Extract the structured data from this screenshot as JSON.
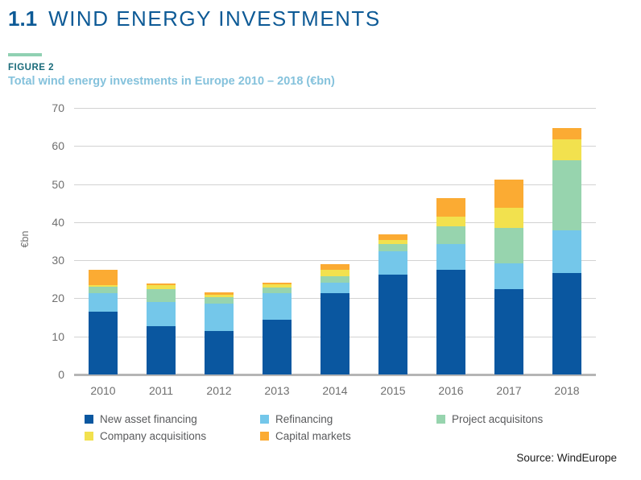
{
  "page": {
    "section_number": "1.1",
    "section_title": "WIND ENERGY INVESTMENTS",
    "figure_label": "FIGURE 2",
    "figure_title": "Total wind energy investments in Europe 2010 – 2018 (€bn)",
    "source": "Source: WindEurope"
  },
  "colors": {
    "title": "#0d5a96",
    "figure_label": "#1a6b7a",
    "figure_title": "#85c2dc",
    "accent_rule": "#90d1b2",
    "axis_text": "#6f6f6f",
    "gridline": "#d2d2d2",
    "axis_line": "#b5b5b5",
    "legend_text": "#595a5c",
    "source_text": "#1c1c1c"
  },
  "chart_data": {
    "type": "bar",
    "stacked": true,
    "title": "Total wind energy investments in Europe 2010 – 2018 (€bn)",
    "xlabel": "",
    "ylabel": "€bn",
    "ylim": [
      0,
      70
    ],
    "yticks": [
      0,
      10,
      20,
      30,
      40,
      50,
      60,
      70
    ],
    "grid": true,
    "legend_position": "bottom",
    "categories": [
      "2010",
      "2011",
      "2012",
      "2013",
      "2014",
      "2015",
      "2016",
      "2017",
      "2018"
    ],
    "series": [
      {
        "name": "New asset financing",
        "color": "#0a57a0",
        "values": [
          16.5,
          12.6,
          11.5,
          14.4,
          21.3,
          26.2,
          27.5,
          22.5,
          26.7
        ]
      },
      {
        "name": "Refinancing",
        "color": "#74c7ea",
        "values": [
          4.8,
          6.4,
          7.1,
          6.9,
          2.9,
          6.1,
          6.8,
          6.7,
          11.1
        ]
      },
      {
        "name": "Project acquisitons",
        "color": "#97d4ae",
        "values": [
          1.7,
          3.5,
          1.7,
          1.6,
          1.7,
          1.9,
          4.6,
          9.3,
          18.5
        ]
      },
      {
        "name": "Company acquisitions",
        "color": "#f2e14e",
        "values": [
          0.4,
          0.9,
          0.6,
          0.7,
          1.7,
          1.2,
          2.6,
          5.3,
          5.5
        ]
      },
      {
        "name": "Capital markets",
        "color": "#fbab33",
        "values": [
          4.2,
          0.5,
          0.6,
          0.6,
          1.4,
          1.5,
          4.9,
          7.4,
          2.9
        ]
      }
    ],
    "totals": [
      27.6,
      23.9,
      21.5,
      24.2,
      29.0,
      36.9,
      46.4,
      51.2,
      64.7
    ],
    "legend_column_order": [
      0,
      3,
      1,
      4,
      2
    ]
  }
}
